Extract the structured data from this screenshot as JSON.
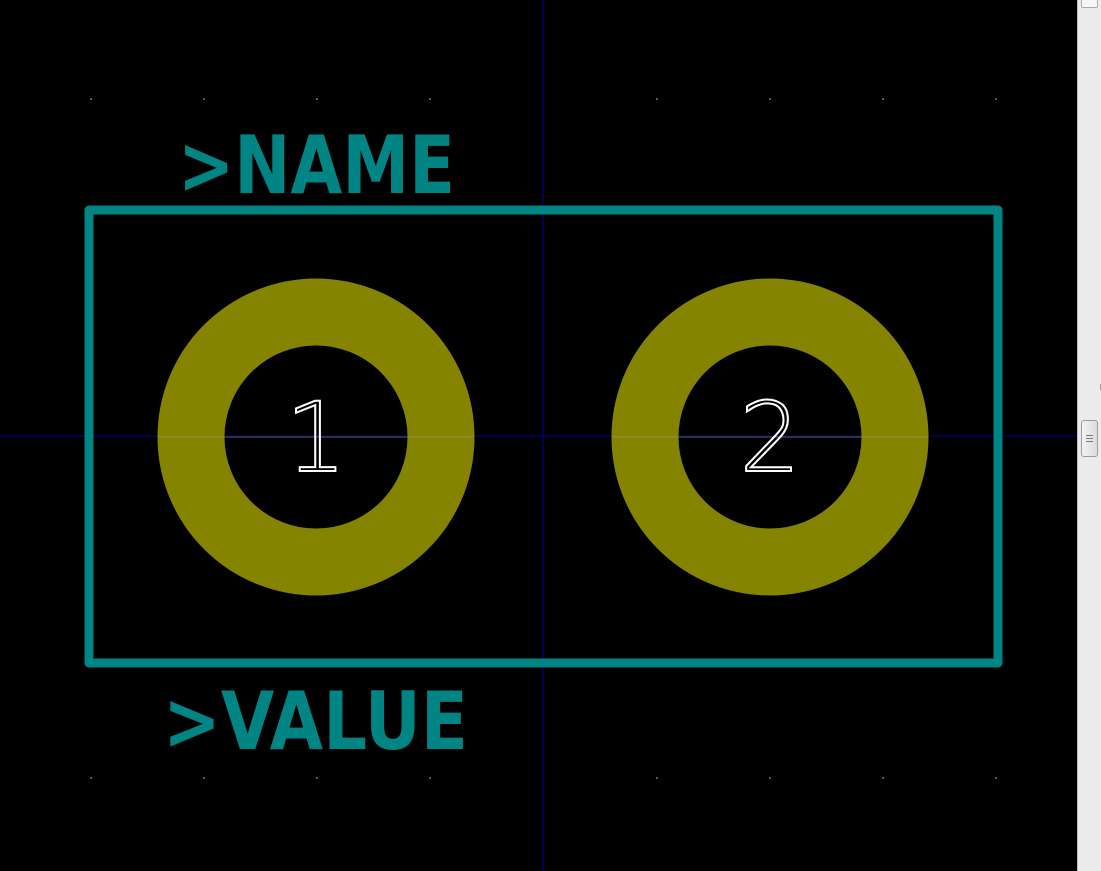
{
  "footprint": {
    "name_text": ">NAME",
    "value_text": ">VALUE",
    "pads": [
      {
        "number": "1"
      },
      {
        "number": "2"
      }
    ]
  },
  "colors": {
    "background": "#000000",
    "silkscreen": "#008484",
    "pad_copper": "#848400",
    "pad_number": "#ffffff",
    "axis": "#000084",
    "grid_dot": "#5a5a5a"
  },
  "scrollbar": {
    "orientation": "vertical"
  }
}
